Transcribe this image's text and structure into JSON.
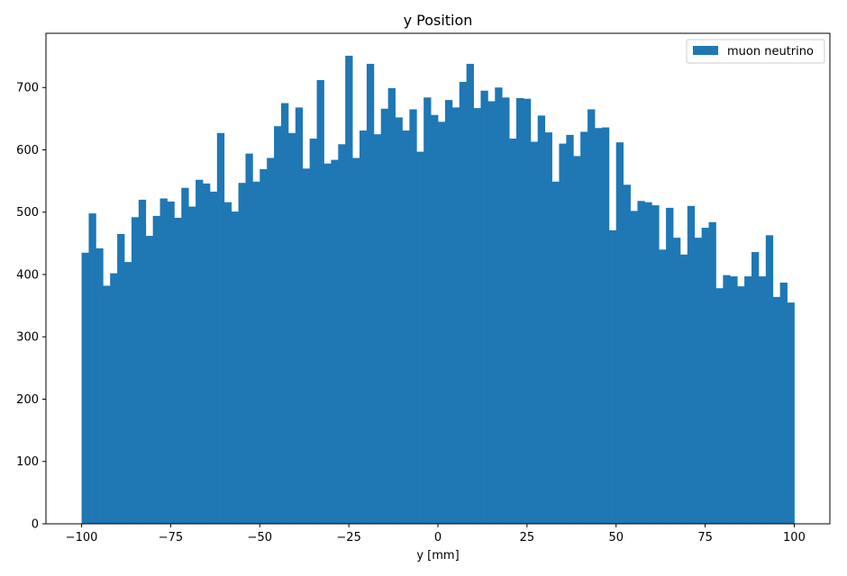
{
  "chart_data": {
    "type": "bar",
    "title": "y Position",
    "xlabel": "y [mm]",
    "ylabel": "",
    "xlim": [
      -110,
      110
    ],
    "ylim": [
      0,
      787
    ],
    "bin_start": -100,
    "bin_width": 2,
    "x_ticks": [
      -100,
      -75,
      -50,
      -25,
      0,
      25,
      50,
      75,
      100
    ],
    "y_ticks": [
      0,
      100,
      200,
      300,
      400,
      500,
      600,
      700
    ],
    "legend_position": "top-right",
    "series": [
      {
        "name": "muon neutrino",
        "color": "#1f77b4",
        "values": [
          435,
          498,
          442,
          382,
          402,
          465,
          420,
          492,
          520,
          462,
          494,
          522,
          517,
          491,
          539,
          509,
          552,
          546,
          533,
          627,
          516,
          501,
          547,
          594,
          549,
          569,
          587,
          638,
          675,
          627,
          668,
          570,
          618,
          712,
          578,
          584,
          609,
          751,
          587,
          631,
          738,
          625,
          666,
          699,
          652,
          631,
          665,
          597,
          684,
          656,
          645,
          680,
          668,
          709,
          738,
          667,
          695,
          678,
          700,
          684,
          618,
          683,
          682,
          613,
          655,
          628,
          549,
          610,
          624,
          590,
          629,
          665,
          635,
          636,
          471,
          612,
          544,
          502,
          518,
          516,
          511,
          440,
          507,
          459,
          432,
          510,
          459,
          475,
          484,
          378,
          399,
          397,
          381,
          397,
          436,
          397,
          463,
          364,
          387,
          355
        ]
      }
    ]
  }
}
